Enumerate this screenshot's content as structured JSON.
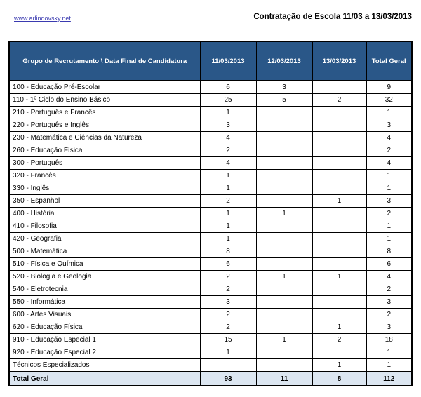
{
  "page": {
    "link_text": "www.arlindovsky.net",
    "title": "Contratação de Escola 11/03 a 13/03/2013"
  },
  "colors": {
    "header_bg": "#2A5788",
    "header_text": "#FFFFFF",
    "total_row_bg": "#DCE6F1",
    "border": "#000000",
    "link": "#3A3AB0"
  },
  "table": {
    "headers": [
      "Grupo de Recrutamento \\ Data Final de Candidatura",
      "11/03/2013",
      "12/03/2013",
      "13/03/2013",
      "Total Geral"
    ],
    "rows": [
      {
        "label": "100 - Educação Pré-Escolar",
        "values": [
          "6",
          "3",
          "",
          "9"
        ]
      },
      {
        "label": "110 - 1º Ciclo do Ensino Básico",
        "values": [
          "25",
          "5",
          "2",
          "32"
        ]
      },
      {
        "label": "210 - Português e Francês",
        "values": [
          "1",
          "",
          "",
          "1"
        ]
      },
      {
        "label": "220 - Português e Inglês",
        "values": [
          "3",
          "",
          "",
          "3"
        ]
      },
      {
        "label": "230 - Matemática e Ciências da Natureza",
        "values": [
          "4",
          "",
          "",
          "4"
        ]
      },
      {
        "label": "260 - Educação Física",
        "values": [
          "2",
          "",
          "",
          "2"
        ]
      },
      {
        "label": "300 - Português",
        "values": [
          "4",
          "",
          "",
          "4"
        ]
      },
      {
        "label": "320 - Francês",
        "values": [
          "1",
          "",
          "",
          "1"
        ]
      },
      {
        "label": "330 - Inglês",
        "values": [
          "1",
          "",
          "",
          "1"
        ]
      },
      {
        "label": "350 - Espanhol",
        "values": [
          "2",
          "",
          "1",
          "3"
        ]
      },
      {
        "label": "400 - História",
        "values": [
          "1",
          "1",
          "",
          "2"
        ]
      },
      {
        "label": "410 - Filosofia",
        "values": [
          "1",
          "",
          "",
          "1"
        ]
      },
      {
        "label": "420 - Geografia",
        "values": [
          "1",
          "",
          "",
          "1"
        ]
      },
      {
        "label": "500 - Matemática",
        "values": [
          "8",
          "",
          "",
          "8"
        ]
      },
      {
        "label": "510 - Física e Química",
        "values": [
          "6",
          "",
          "",
          "6"
        ]
      },
      {
        "label": "520 - Biologia e Geologia",
        "values": [
          "2",
          "1",
          "1",
          "4"
        ]
      },
      {
        "label": "540 - Eletrotecnia",
        "values": [
          "2",
          "",
          "",
          "2"
        ]
      },
      {
        "label": "550 - Informática",
        "values": [
          "3",
          "",
          "",
          "3"
        ]
      },
      {
        "label": "600 - Artes Visuais",
        "values": [
          "2",
          "",
          "",
          "2"
        ]
      },
      {
        "label": "620 - Educação Física",
        "values": [
          "2",
          "",
          "1",
          "3"
        ]
      },
      {
        "label": "910 - Educação Especial 1",
        "values": [
          "15",
          "1",
          "2",
          "18"
        ]
      },
      {
        "label": "920 - Educação Especial 2",
        "values": [
          "1",
          "",
          "",
          "1"
        ]
      },
      {
        "label": "Técnicos Especializados",
        "values": [
          "",
          "",
          "1",
          "1"
        ]
      }
    ],
    "total": {
      "label": "Total Geral",
      "values": [
        "93",
        "11",
        "8",
        "112"
      ]
    }
  }
}
